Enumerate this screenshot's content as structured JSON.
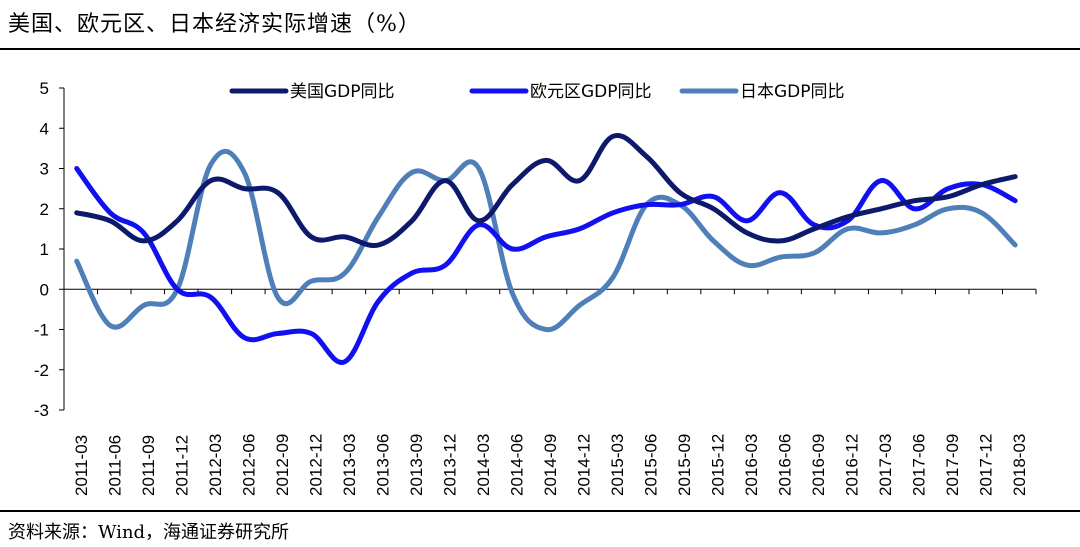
{
  "title": "美国、欧元区、日本经济实际增速（%）",
  "source": "资料来源：Wind，海通证券研究所",
  "chart_data": {
    "type": "line",
    "title": "美国、欧元区、日本经济实际增速（%）",
    "xlabel": "",
    "ylabel": "",
    "ylim": [
      -3,
      5
    ],
    "yticks": [
      "5",
      "4",
      "3",
      "2",
      "1",
      "0",
      "-1",
      "-2",
      "-3"
    ],
    "categories": [
      "2011-03",
      "2011-06",
      "2011-09",
      "2011-12",
      "2012-03",
      "2012-06",
      "2012-09",
      "2012-12",
      "2013-03",
      "2013-06",
      "2013-09",
      "2013-12",
      "2014-03",
      "2014-06",
      "2014-09",
      "2014-12",
      "2015-03",
      "2015-06",
      "2015-09",
      "2015-12",
      "2016-03",
      "2016-06",
      "2016-09",
      "2016-12",
      "2017-03",
      "2017-06",
      "2017-09",
      "2017-12",
      "2018-03"
    ],
    "legend_position": "top",
    "series": [
      {
        "name": "美国GDP同比",
        "color": "#0d1a6b",
        "values": [
          1.9,
          1.7,
          1.2,
          1.7,
          2.7,
          2.5,
          2.4,
          1.3,
          1.3,
          1.1,
          1.7,
          2.7,
          1.7,
          2.6,
          3.2,
          2.7,
          3.8,
          3.3,
          2.4,
          2.0,
          1.4,
          1.2,
          1.5,
          1.8,
          2.0,
          2.2,
          2.3,
          2.6,
          2.8
        ]
      },
      {
        "name": "欧元区GDP同比",
        "color": "#1010f0",
        "values": [
          3.0,
          1.9,
          1.4,
          0.0,
          -0.2,
          -1.2,
          -1.1,
          -1.1,
          -1.8,
          -0.3,
          0.4,
          0.6,
          1.6,
          1.0,
          1.3,
          1.5,
          1.9,
          2.1,
          2.1,
          2.3,
          1.7,
          2.4,
          1.6,
          1.7,
          2.7,
          2.0,
          2.5,
          2.6,
          2.2
        ]
      },
      {
        "name": "日本GDP同比",
        "color": "#4f7fb8",
        "values": [
          0.7,
          -0.9,
          -0.4,
          0.0,
          3.1,
          2.9,
          -0.2,
          0.2,
          0.4,
          1.8,
          2.9,
          2.7,
          3.0,
          -0.1,
          -1.0,
          -0.4,
          0.3,
          2.1,
          2.1,
          1.2,
          0.6,
          0.8,
          0.9,
          1.5,
          1.4,
          1.6,
          2.0,
          1.9,
          1.1
        ]
      }
    ]
  }
}
